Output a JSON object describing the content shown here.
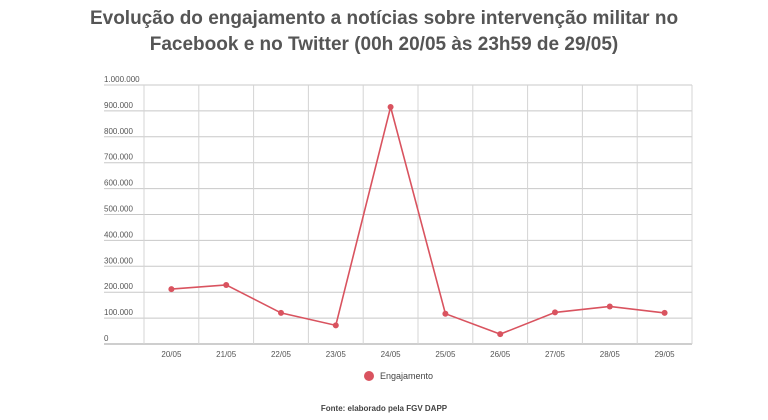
{
  "header": {
    "title_line1": "Evolução do engajamento a notícias sobre intervenção militar no",
    "title_line2": "Facebook e no Twitter (00h 20/05 às 23h59 de 29/05)"
  },
  "source": "Fonte: elaborado pela FGV DAPP",
  "chart_data": {
    "type": "line",
    "title": "Evolução do engajamento a notícias sobre intervenção militar no Facebook e no Twitter (00h 20/05 às 23h59 de 29/05)",
    "xlabel": "",
    "ylabel": "",
    "categories": [
      "20/05",
      "21/05",
      "22/05",
      "23/05",
      "24/05",
      "25/05",
      "26/05",
      "27/05",
      "28/05",
      "29/05"
    ],
    "series": [
      {
        "name": "Engajamento",
        "color": "#d9535f",
        "values": [
          212000,
          228000,
          120000,
          72000,
          915000,
          117000,
          38000,
          122000,
          145000,
          120000
        ]
      }
    ],
    "ylim": [
      0,
      1000000
    ],
    "yticks": [
      0,
      100000,
      200000,
      300000,
      400000,
      500000,
      600000,
      700000,
      800000,
      900000,
      1000000
    ],
    "ytick_labels": [
      "0",
      "100.000",
      "200.000",
      "300.000",
      "400.000",
      "500.000",
      "600.000",
      "700.000",
      "800.000",
      "900.000",
      "1.000.000"
    ],
    "grid": true,
    "legend": "bottom-center"
  }
}
